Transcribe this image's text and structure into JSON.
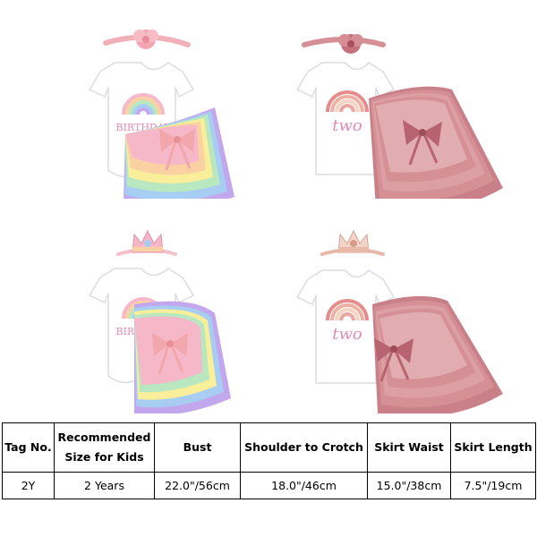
{
  "colors": {
    "bodysuit": "#ffffff",
    "bodysuit_outline": "#dcdce2",
    "bow_pink": "#f1a7ab",
    "dusty_rose": "#d59095",
    "rainbow": [
      "#f6b8c8",
      "#f9d1a2",
      "#f9ef9b",
      "#b8e7c0",
      "#a7cdf2",
      "#c2a7ec"
    ],
    "boho_rainbow": [
      "#e58c8c",
      "#eeb0a0",
      "#f6d2c3",
      "#e9a7a0"
    ],
    "text_pink": "#e38ab3"
  },
  "products": [
    {
      "name": "rainbow-birthday-outfit-headband",
      "bodysuit_text": "BIRTHDAY",
      "headwear": "flower-headband-icon",
      "skirt": "rainbow-tutu-icon"
    },
    {
      "name": "boho-two-outfit-headband",
      "bodysuit_text": "two",
      "headwear": "flower-headband-icon",
      "skirt": "dusty-rose-tutu-icon"
    },
    {
      "name": "rainbow-birthday-outfit-crown",
      "bodysuit_text": "BIRTHDAY",
      "headwear": "crown-headband-icon",
      "skirt": "rainbow-tutu-icon"
    },
    {
      "name": "boho-two-outfit-crown",
      "bodysuit_text": "two",
      "headwear": "crown-headband-icon",
      "skirt": "dusty-rose-tutu-icon"
    }
  ],
  "size_table": {
    "headers": [
      {
        "lines": [
          "Tag No."
        ]
      },
      {
        "lines": [
          "Recommended",
          "Size for Kids"
        ]
      },
      {
        "lines": [
          "Bust"
        ]
      },
      {
        "lines": [
          "Shoulder to Crotch"
        ]
      },
      {
        "lines": [
          "Skirt Waist"
        ]
      },
      {
        "lines": [
          "Skirt Length"
        ]
      }
    ],
    "rows": [
      [
        "2Y",
        "2 Years",
        "22.0\"/56cm",
        "18.0\"/46cm",
        "15.0\"/38cm",
        "7.5\"/19cm"
      ]
    ]
  }
}
